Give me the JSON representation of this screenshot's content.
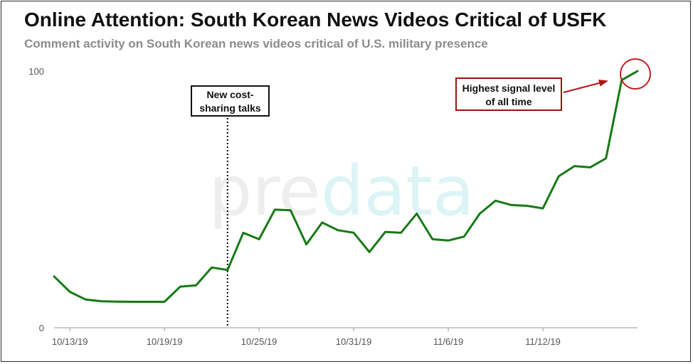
{
  "title": "Online Attention: South Korean News Videos Critical of USFK",
  "subtitle": "Comment activity on South Korean news videos critical of U.S. military presence",
  "watermark": {
    "part1": "pre",
    "part2": "data"
  },
  "annotations": {
    "event_label": "New cost-sharing talks",
    "peak_label": "Highest signal level of all time"
  },
  "colors": {
    "line": "#167a16",
    "axis": "#999999",
    "peak_marker": "#c41e1e",
    "watermark_gray": "#eeeeee",
    "watermark_teal": "#dcf4f6"
  },
  "chart_data": {
    "type": "line",
    "title": "Online Attention: South Korean News Videos Critical of USFK",
    "subtitle": "Comment activity on South Korean news videos critical of U.S. military presence",
    "xlabel": "",
    "ylabel": "",
    "ylim": [
      0,
      100
    ],
    "yticks": [
      "0",
      "100"
    ],
    "xtick_labels": [
      "10/13/19",
      "10/19/19",
      "10/25/19",
      "10/31/19",
      "11/6/19",
      "11/12/19"
    ],
    "x_start": "10/12/19",
    "x_end": "11/18/19",
    "grid": false,
    "legend": "none",
    "event_marker": {
      "x": "10/23/19",
      "label": "New cost-sharing talks"
    },
    "peak_marker": {
      "x": "11/18/19",
      "label": "Highest signal level of all time"
    },
    "series": [
      {
        "x": [
          "10/12/19",
          "10/13/19",
          "10/14/19",
          "10/15/19",
          "10/16/19",
          "10/17/19",
          "10/18/19",
          "10/19/19",
          "10/20/19",
          "10/21/19",
          "10/22/19",
          "10/23/19",
          "10/24/19",
          "10/25/19",
          "10/26/19",
          "10/27/19",
          "10/28/19",
          "10/29/19",
          "10/30/19",
          "10/31/19",
          "11/1/19",
          "11/2/19",
          "11/3/19",
          "11/4/19",
          "11/5/19",
          "11/6/19",
          "11/7/19",
          "11/8/19",
          "11/9/19",
          "11/10/19",
          "11/11/19",
          "11/12/19",
          "11/13/19",
          "11/14/19",
          "11/15/19",
          "11/16/19",
          "11/17/19",
          "11/18/19"
        ],
        "values": [
          20,
          14,
          11,
          10.3,
          10.2,
          10.1,
          10.1,
          10.1,
          16,
          16.5,
          23.5,
          22.5,
          37,
          34.5,
          46,
          45.8,
          32.5,
          41,
          38,
          37,
          29.5,
          37.3,
          37,
          44.5,
          34.5,
          34,
          35.5,
          44.5,
          49.5,
          47.8,
          47.5,
          46.5,
          59,
          63,
          62.5,
          66,
          96.5,
          100
        ]
      }
    ]
  }
}
